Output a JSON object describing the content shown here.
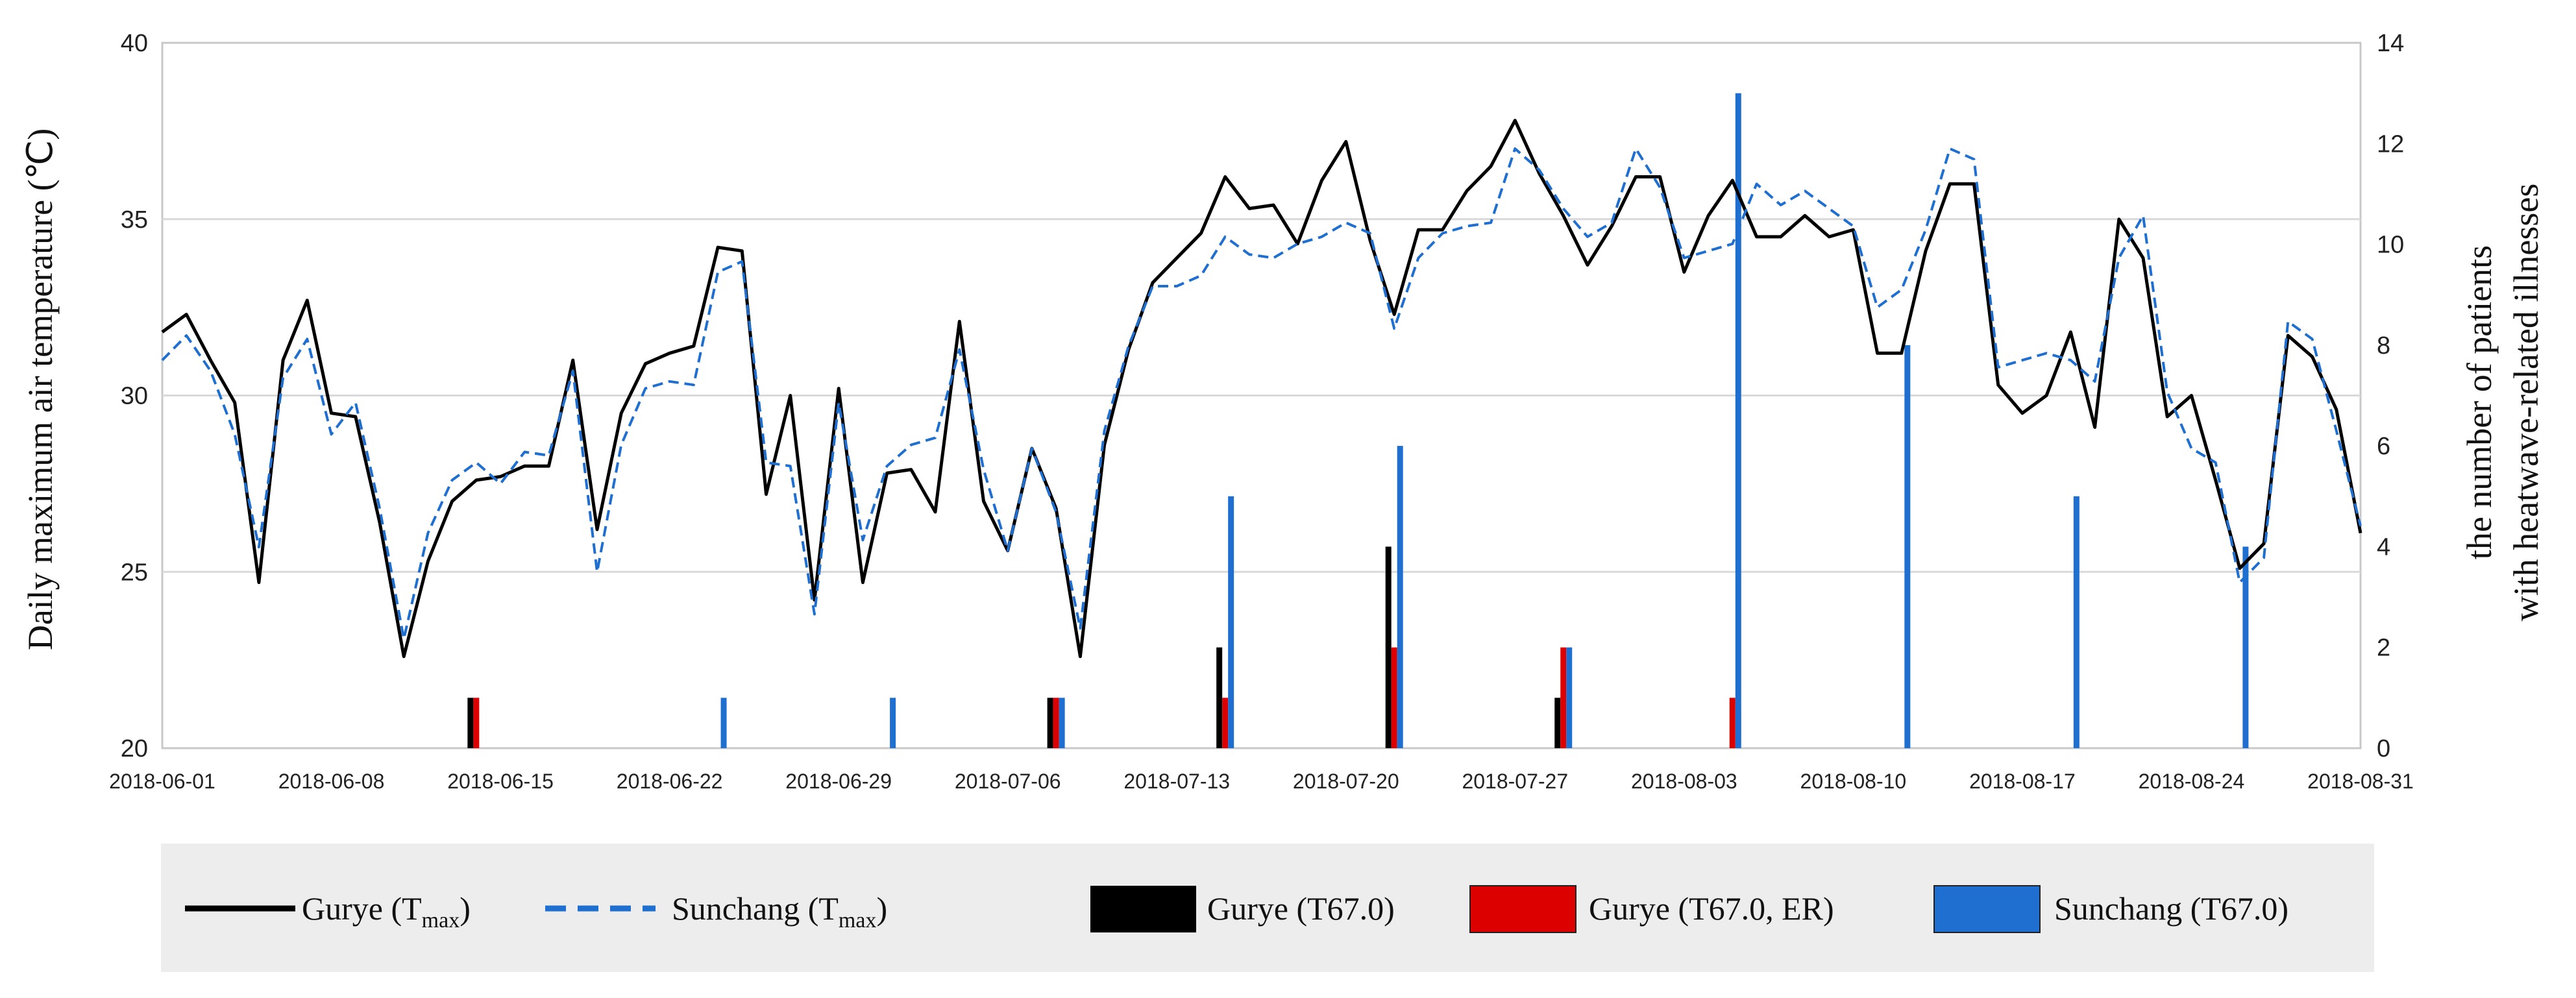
{
  "chart_data": {
    "type": "line",
    "xlabel": "",
    "ylabel": "Daily maximum air temperature (℃)",
    "y2label_lines": [
      "the number of patients",
      "with heatwave-related illnesses"
    ],
    "ylim": [
      20,
      40
    ],
    "y2lim": [
      0,
      14
    ],
    "yticks": [
      "20",
      "25",
      "30",
      "35",
      "40"
    ],
    "y2ticks": [
      "0",
      "2",
      "4",
      "6",
      "8",
      "10",
      "12",
      "14"
    ],
    "x_start": "2018-06-01",
    "x_end": "2018-08-31",
    "x_tick_labels": [
      "2018-06-01",
      "2018-06-08",
      "2018-06-15",
      "2018-06-22",
      "2018-06-29",
      "2018-07-06",
      "2018-07-13",
      "2018-07-20",
      "2018-07-27",
      "2018-08-03",
      "2018-08-10",
      "2018-08-17",
      "2018-08-24",
      "2018-08-31"
    ],
    "grid": true,
    "legend_position": "bottom",
    "line_series": [
      {
        "name": "Gurye (T",
        "name_sub": "max",
        "name_end": ")",
        "color": "#000000",
        "dashed": false,
        "values": [
          31.8,
          32.3,
          31.0,
          29.8,
          24.7,
          31.0,
          32.7,
          29.5,
          29.4,
          26.4,
          22.6,
          25.3,
          27.0,
          27.6,
          27.7,
          28.0,
          28.0,
          31.0,
          26.2,
          29.5,
          30.9,
          31.2,
          31.4,
          34.2,
          34.1,
          27.2,
          30.0,
          24.2,
          30.2,
          24.7,
          27.8,
          27.9,
          26.7,
          32.1,
          27.0,
          25.6,
          28.5,
          26.8,
          22.6,
          28.6,
          31.3,
          33.2,
          33.9,
          34.6,
          36.2,
          35.3,
          35.4,
          34.3,
          36.1,
          37.2,
          34.4,
          32.3,
          34.7,
          34.7,
          35.8,
          36.5,
          37.8,
          36.3,
          35.1,
          33.7,
          34.8,
          36.2,
          36.2,
          33.5,
          35.1,
          36.1,
          34.5,
          34.5,
          35.1,
          34.5,
          34.7,
          31.2,
          31.2,
          34.1,
          36.0,
          36.0,
          30.3,
          29.5,
          30.0,
          31.8,
          29.1,
          35.0,
          33.9,
          29.4,
          30.0,
          27.6,
          25.1,
          25.8,
          31.7,
          31.1,
          29.6,
          26.1
        ]
      },
      {
        "name": "Sunchang (T",
        "name_sub": "max",
        "name_end": ")",
        "color": "#1f6fd1",
        "dashed": true,
        "values": [
          31.0,
          31.7,
          30.7,
          28.9,
          25.7,
          30.5,
          31.6,
          28.9,
          29.8,
          26.8,
          23.1,
          26.1,
          27.6,
          28.1,
          27.5,
          28.4,
          28.3,
          30.7,
          25.0,
          28.6,
          30.2,
          30.4,
          30.3,
          33.5,
          33.8,
          28.1,
          28.0,
          23.8,
          29.8,
          25.9,
          28.0,
          28.6,
          28.8,
          31.3,
          27.9,
          25.6,
          28.5,
          26.7,
          23.4,
          29.0,
          31.4,
          33.1,
          33.1,
          33.4,
          34.5,
          34.0,
          33.9,
          34.3,
          34.5,
          34.9,
          34.6,
          31.9,
          33.9,
          34.6,
          34.8,
          34.9,
          37.0,
          36.4,
          35.3,
          34.5,
          34.9,
          37.0,
          35.9,
          33.9,
          34.1,
          34.3,
          36.0,
          35.4,
          35.8,
          35.3,
          34.8,
          32.5,
          33.0,
          34.7,
          37.0,
          36.7,
          30.8,
          31.0,
          31.2,
          31.0,
          30.4,
          33.9,
          35.1,
          30.1,
          28.5,
          28.1,
          24.7,
          25.4,
          32.1,
          31.6,
          29.0,
          26.3
        ]
      }
    ],
    "bar_series": [
      {
        "name": "Gurye (T67.0)",
        "color": "#000000",
        "points": [
          [
            "2018-06-14",
            1
          ],
          [
            "2018-07-08",
            1
          ],
          [
            "2018-07-15",
            2
          ],
          [
            "2018-07-22",
            4
          ],
          [
            "2018-07-29",
            1
          ]
        ]
      },
      {
        "name": "Gurye (T67.0, ER)",
        "color": "#dd0000",
        "points": [
          [
            "2018-06-14",
            1
          ],
          [
            "2018-07-08",
            1
          ],
          [
            "2018-07-15",
            1
          ],
          [
            "2018-07-22",
            2
          ],
          [
            "2018-07-29",
            2
          ],
          [
            "2018-08-05",
            1
          ]
        ]
      },
      {
        "name": "Sunchang (T67.0)",
        "color": "#1f6fd1",
        "points": [
          [
            "2018-06-24",
            1
          ],
          [
            "2018-07-01",
            1
          ],
          [
            "2018-07-08",
            1
          ],
          [
            "2018-07-15",
            5
          ],
          [
            "2018-07-22",
            6
          ],
          [
            "2018-07-29",
            2
          ],
          [
            "2018-08-05",
            13
          ],
          [
            "2018-08-12",
            8
          ],
          [
            "2018-08-19",
            5
          ],
          [
            "2018-08-26",
            4
          ]
        ]
      }
    ]
  }
}
